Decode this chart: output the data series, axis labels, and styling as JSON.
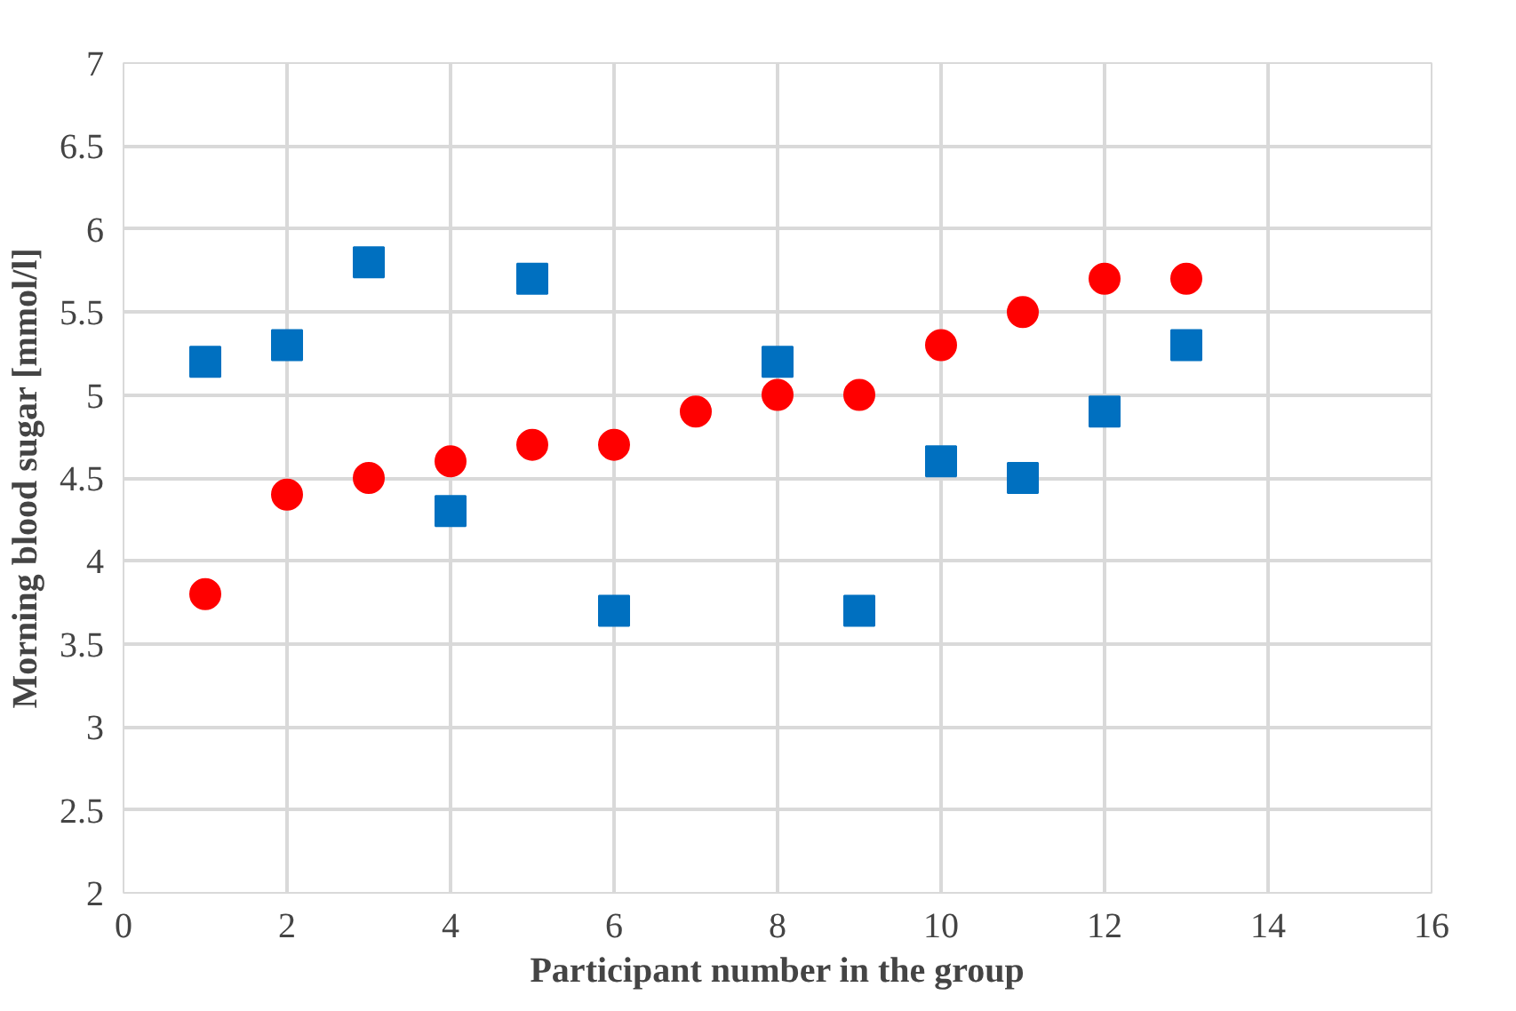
{
  "chart_data": {
    "type": "scatter",
    "xlabel": "Participant number in the group",
    "ylabel": "Morning blood sugar [mmol/l]",
    "xlim": [
      0,
      16
    ],
    "xticks": [
      0,
      2,
      4,
      6,
      8,
      10,
      12,
      14,
      16
    ],
    "ylim": [
      2,
      7
    ],
    "yticks": [
      2,
      2.5,
      3,
      3.5,
      4,
      4.5,
      5,
      5.5,
      6,
      6.5,
      7
    ],
    "grid": true,
    "series": [
      {
        "color": "#0070c0",
        "marker": "square",
        "x": [
          1,
          2,
          3,
          4,
          5,
          6,
          8,
          9,
          10,
          11,
          12,
          13
        ],
        "values": [
          5.2,
          5.3,
          5.8,
          4.3,
          5.7,
          3.7,
          5.2,
          3.7,
          4.6,
          4.5,
          4.9,
          5.3
        ]
      },
      {
        "color": "#ff0000",
        "marker": "circle",
        "x": [
          1,
          2,
          3,
          4,
          5,
          6,
          7,
          8,
          9,
          10,
          11,
          12,
          13
        ],
        "values": [
          3.8,
          4.4,
          4.5,
          4.6,
          4.7,
          4.7,
          4.9,
          5.0,
          5.0,
          5.3,
          5.5,
          5.7,
          5.7
        ]
      }
    ]
  }
}
